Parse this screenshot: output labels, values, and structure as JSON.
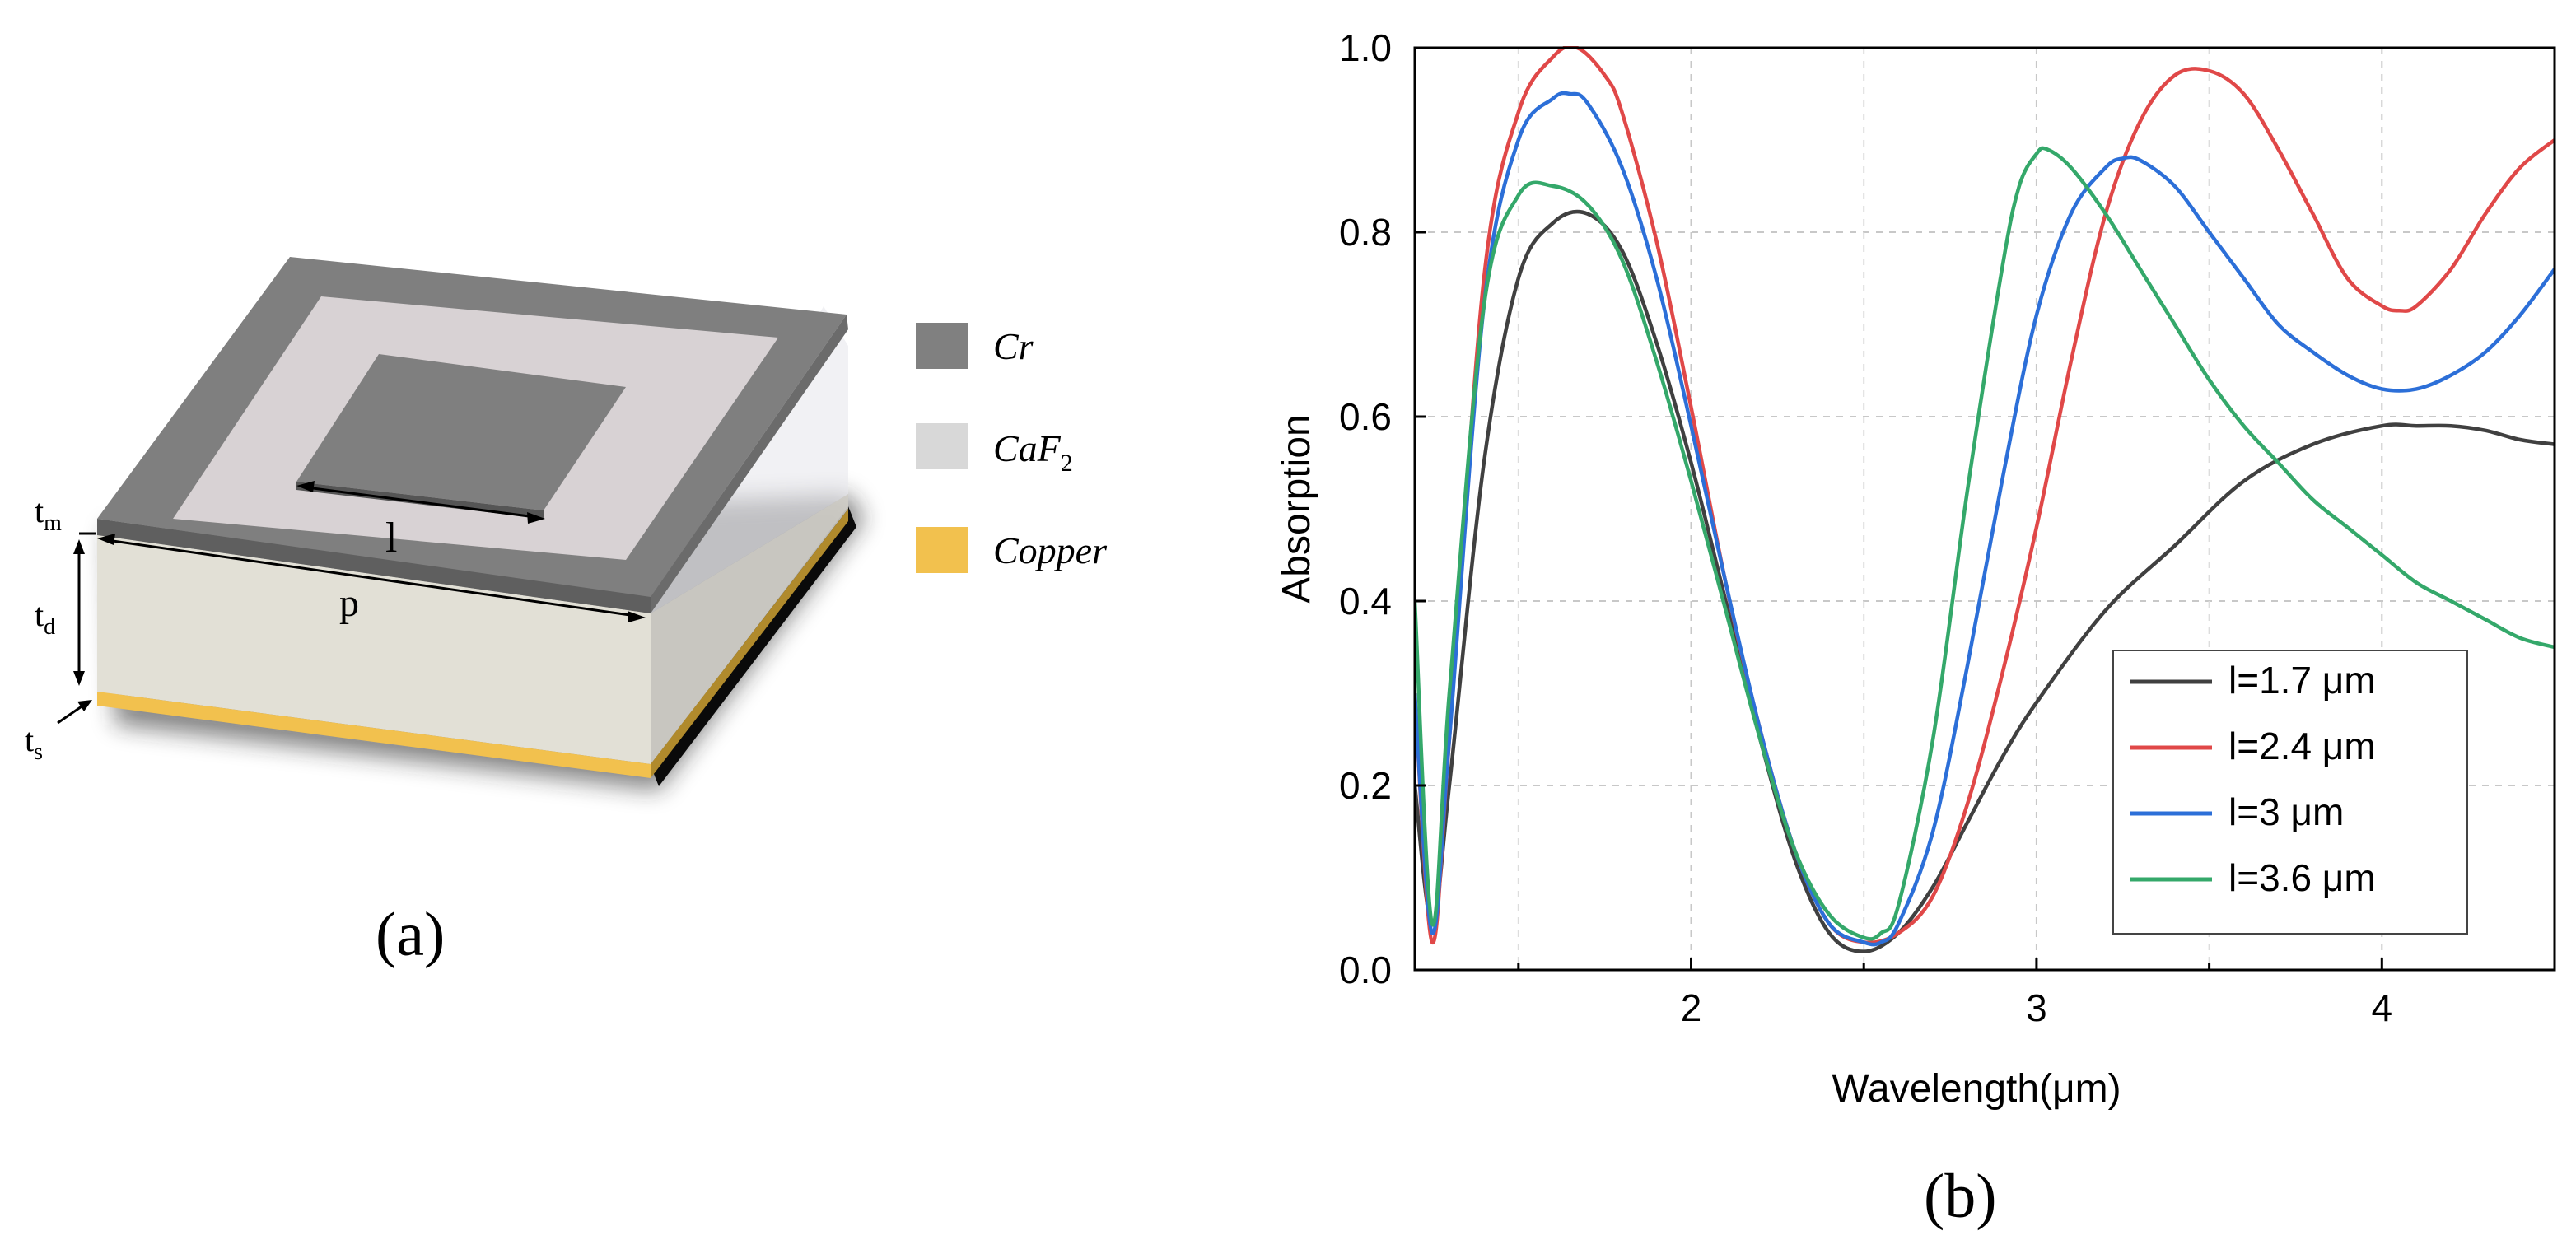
{
  "panel_a": {
    "caption": "(a)",
    "dimension_labels": {
      "tm_base": "t",
      "tm_sub": "m",
      "td_base": "t",
      "td_sub": "d",
      "ts_base": "t",
      "ts_sub": "s",
      "l": "l",
      "p": "p"
    },
    "legend": {
      "items": [
        {
          "label": "Cr",
          "color": "#808080"
        },
        {
          "label_base": "CaF",
          "label_sub": "2",
          "color": "#d8d8d8"
        },
        {
          "label": "Copper",
          "color": "#f2c14e"
        }
      ]
    },
    "colors": {
      "cr": "#7f7f7f",
      "caf2_top": "#d9d4d6",
      "caf2_side": "#e4e2da",
      "copper": "#f2c14e",
      "shadow": "#111111"
    }
  },
  "panel_b": {
    "caption": "(b)"
  },
  "chart_data": {
    "type": "line",
    "xlabel": "Wavelength(μm)",
    "ylabel": "Absorption",
    "xlim": [
      1.2,
      4.5
    ],
    "ylim": [
      0.0,
      1.0
    ],
    "xticks": [
      2,
      3,
      4
    ],
    "yticks": [
      0.0,
      0.2,
      0.4,
      0.6,
      0.8,
      1.0
    ],
    "ytick_labels": [
      "0.0",
      "0.2",
      "0.4",
      "0.6",
      "0.8",
      "1.0"
    ],
    "xtick_labels": [
      "2",
      "3",
      "4"
    ],
    "grid": true,
    "legend_position": "bottom-right",
    "series": [
      {
        "name": "l=1.7 μm",
        "color": "#404040",
        "x": [
          1.2,
          1.25,
          1.3,
          1.4,
          1.5,
          1.6,
          1.7,
          1.8,
          1.9,
          2.0,
          2.1,
          2.2,
          2.3,
          2.4,
          2.5,
          2.6,
          2.7,
          2.8,
          2.9,
          3.0,
          3.2,
          3.4,
          3.6,
          3.8,
          4.0,
          4.1,
          4.2,
          4.3,
          4.4,
          4.5
        ],
        "y": [
          0.2,
          0.05,
          0.2,
          0.55,
          0.75,
          0.81,
          0.82,
          0.78,
          0.68,
          0.55,
          0.4,
          0.25,
          0.12,
          0.04,
          0.02,
          0.04,
          0.09,
          0.16,
          0.23,
          0.29,
          0.39,
          0.46,
          0.53,
          0.57,
          0.59,
          0.59,
          0.59,
          0.585,
          0.575,
          0.57
        ]
      },
      {
        "name": "l=2.4 μm",
        "color": "#e04848",
        "x": [
          1.2,
          1.25,
          1.3,
          1.4,
          1.5,
          1.6,
          1.67,
          1.75,
          1.8,
          1.9,
          2.0,
          2.1,
          2.2,
          2.3,
          2.4,
          2.5,
          2.6,
          2.7,
          2.8,
          2.9,
          3.0,
          3.1,
          3.2,
          3.3,
          3.4,
          3.5,
          3.6,
          3.7,
          3.8,
          3.9,
          4.0,
          4.05,
          4.1,
          4.2,
          4.3,
          4.4,
          4.5
        ],
        "y": [
          0.3,
          0.03,
          0.25,
          0.75,
          0.93,
          0.99,
          1.0,
          0.97,
          0.93,
          0.79,
          0.61,
          0.42,
          0.26,
          0.13,
          0.05,
          0.03,
          0.04,
          0.08,
          0.18,
          0.32,
          0.48,
          0.66,
          0.82,
          0.92,
          0.97,
          0.975,
          0.95,
          0.89,
          0.82,
          0.75,
          0.72,
          0.715,
          0.72,
          0.76,
          0.82,
          0.87,
          0.9
        ]
      },
      {
        "name": "l=3 μm",
        "color": "#2c6fd8",
        "x": [
          1.2,
          1.25,
          1.3,
          1.4,
          1.5,
          1.6,
          1.65,
          1.7,
          1.8,
          1.9,
          2.0,
          2.1,
          2.2,
          2.3,
          2.4,
          2.5,
          2.55,
          2.6,
          2.7,
          2.8,
          2.9,
          3.0,
          3.1,
          3.2,
          3.25,
          3.3,
          3.4,
          3.5,
          3.6,
          3.7,
          3.8,
          3.9,
          4.0,
          4.1,
          4.2,
          4.3,
          4.4,
          4.5
        ],
        "y": [
          0.3,
          0.04,
          0.25,
          0.72,
          0.9,
          0.945,
          0.95,
          0.94,
          0.87,
          0.75,
          0.59,
          0.42,
          0.26,
          0.13,
          0.05,
          0.03,
          0.03,
          0.05,
          0.15,
          0.33,
          0.53,
          0.71,
          0.82,
          0.87,
          0.88,
          0.878,
          0.85,
          0.8,
          0.75,
          0.7,
          0.67,
          0.645,
          0.63,
          0.63,
          0.645,
          0.67,
          0.71,
          0.76
        ]
      },
      {
        "name": "l=3.6 μm",
        "color": "#34a86a",
        "x": [
          1.2,
          1.25,
          1.3,
          1.4,
          1.5,
          1.6,
          1.7,
          1.8,
          1.9,
          2.0,
          2.1,
          2.2,
          2.3,
          2.4,
          2.5,
          2.55,
          2.6,
          2.7,
          2.8,
          2.9,
          2.95,
          3.0,
          3.03,
          3.1,
          3.2,
          3.3,
          3.4,
          3.5,
          3.6,
          3.7,
          3.8,
          3.9,
          4.0,
          4.1,
          4.2,
          4.3,
          4.4,
          4.5
        ],
        "y": [
          0.4,
          0.05,
          0.3,
          0.72,
          0.84,
          0.85,
          0.83,
          0.77,
          0.66,
          0.53,
          0.39,
          0.25,
          0.13,
          0.06,
          0.035,
          0.04,
          0.07,
          0.25,
          0.52,
          0.76,
          0.85,
          0.885,
          0.89,
          0.87,
          0.82,
          0.76,
          0.7,
          0.64,
          0.59,
          0.55,
          0.51,
          0.48,
          0.45,
          0.42,
          0.4,
          0.38,
          0.36,
          0.35
        ]
      }
    ]
  }
}
